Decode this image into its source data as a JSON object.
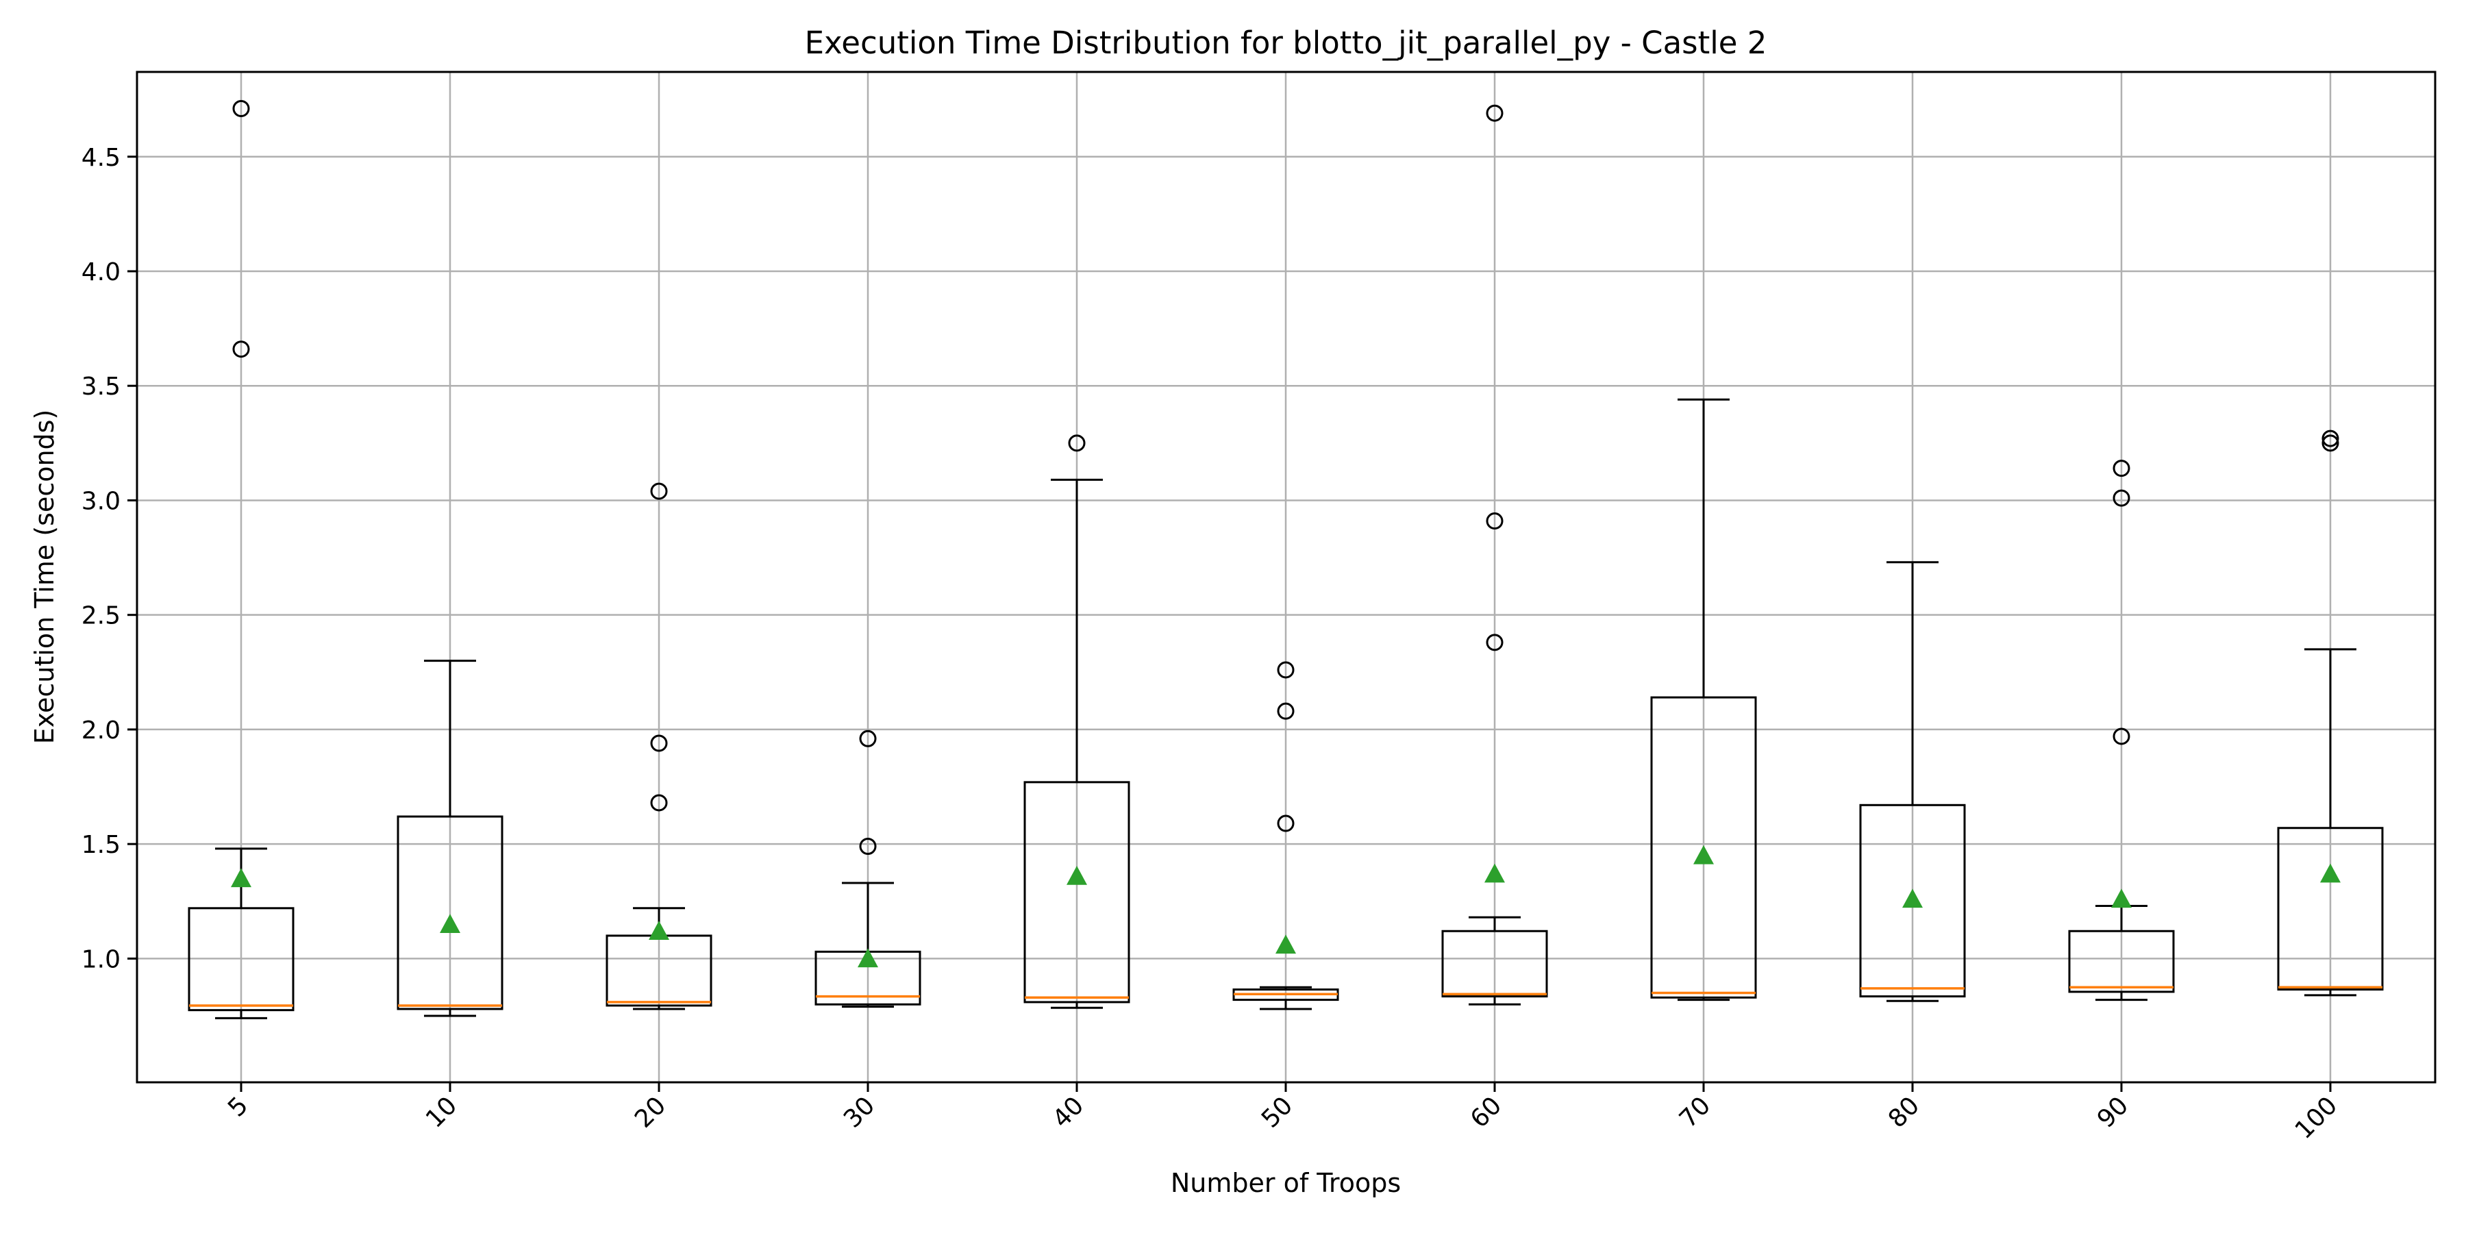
{
  "chart_data": {
    "type": "box",
    "title": "Execution Time Distribution for blotto_jit_parallel_py - Castle 2",
    "xlabel": "Number of Troops",
    "ylabel": "Execution Time (seconds)",
    "ylim": [
      0.46,
      4.87
    ],
    "yticks": [
      1.0,
      1.5,
      2.0,
      2.5,
      3.0,
      3.5,
      4.0,
      4.5
    ],
    "grid": true,
    "tick_rotation_x": 45,
    "colors": {
      "median": "#ff7f0e",
      "mean": "#2ca02c",
      "box": "#000000",
      "grid": "#b0b0b0"
    },
    "categories": [
      "5",
      "10",
      "20",
      "30",
      "40",
      "50",
      "60",
      "70",
      "80",
      "90",
      "100"
    ],
    "boxes": [
      {
        "category": "5",
        "whislo": 0.74,
        "q1": 0.775,
        "med": 0.795,
        "q3": 1.22,
        "whishi": 1.48,
        "mean": 1.35,
        "fliers": [
          3.66,
          4.71
        ]
      },
      {
        "category": "10",
        "whislo": 0.75,
        "q1": 0.78,
        "med": 0.795,
        "q3": 1.62,
        "whishi": 2.3,
        "mean": 1.15,
        "fliers": []
      },
      {
        "category": "20",
        "whislo": 0.78,
        "q1": 0.795,
        "med": 0.81,
        "q3": 1.1,
        "whishi": 1.22,
        "mean": 1.12,
        "fliers": [
          1.68,
          1.94,
          3.04
        ]
      },
      {
        "category": "30",
        "whislo": 0.79,
        "q1": 0.8,
        "med": 0.835,
        "q3": 1.03,
        "whishi": 1.33,
        "mean": 1.0,
        "fliers": [
          1.49,
          1.96
        ]
      },
      {
        "category": "40",
        "whislo": 0.785,
        "q1": 0.81,
        "med": 0.83,
        "q3": 1.77,
        "whishi": 3.09,
        "mean": 1.36,
        "fliers": [
          3.25
        ]
      },
      {
        "category": "50",
        "whislo": 0.78,
        "q1": 0.82,
        "med": 0.845,
        "q3": 0.865,
        "whishi": 0.875,
        "mean": 1.06,
        "fliers": [
          1.59,
          2.08,
          2.26
        ]
      },
      {
        "category": "60",
        "whislo": 0.8,
        "q1": 0.835,
        "med": 0.845,
        "q3": 1.12,
        "whishi": 1.18,
        "mean": 1.37,
        "fliers": [
          2.38,
          2.91,
          4.69
        ]
      },
      {
        "category": "70",
        "whislo": 0.82,
        "q1": 0.83,
        "med": 0.85,
        "q3": 2.14,
        "whishi": 3.44,
        "mean": 1.45,
        "fliers": []
      },
      {
        "category": "80",
        "whislo": 0.815,
        "q1": 0.835,
        "med": 0.87,
        "q3": 1.67,
        "whishi": 2.73,
        "mean": 1.26,
        "fliers": []
      },
      {
        "category": "90",
        "whislo": 0.82,
        "q1": 0.855,
        "med": 0.875,
        "q3": 1.12,
        "whishi": 1.23,
        "mean": 1.26,
        "fliers": [
          1.97,
          3.01,
          3.14
        ]
      },
      {
        "category": "100",
        "whislo": 0.84,
        "q1": 0.865,
        "med": 0.875,
        "q3": 1.57,
        "whishi": 2.35,
        "mean": 1.37,
        "fliers": [
          3.25,
          3.27
        ]
      }
    ]
  }
}
